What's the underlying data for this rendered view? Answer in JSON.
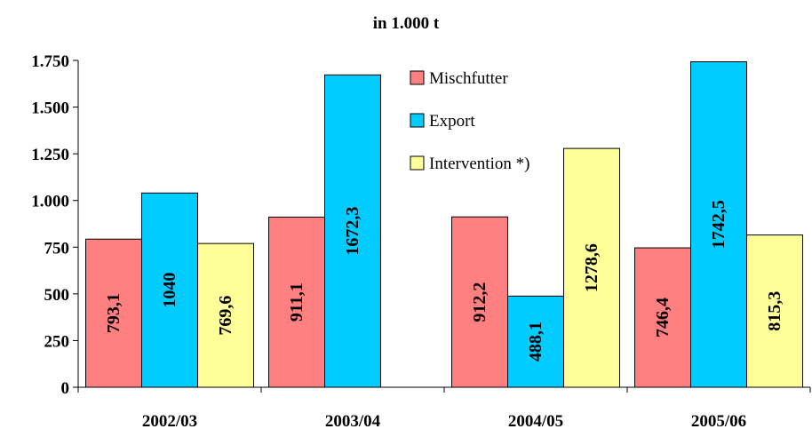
{
  "chart_data": {
    "type": "bar",
    "title": "in 1.000 t",
    "categories": [
      "2002/03",
      "2003/04",
      "2004/05",
      "2005/06"
    ],
    "series": [
      {
        "name": "Mischfutter",
        "color": "#ff8080",
        "values": [
          793.1,
          911.1,
          912.2,
          746.4
        ],
        "labels": [
          "793,1",
          "911,1",
          "912,2",
          "746,4"
        ]
      },
      {
        "name": "Export",
        "color": "#00ccff",
        "values": [
          1040,
          1672.3,
          488.1,
          1742.5
        ],
        "labels": [
          "1040",
          "1672,3",
          "488,1",
          "1742,5"
        ]
      },
      {
        "name": "Intervention *)",
        "color": "#ffff99",
        "values": [
          769.6,
          null,
          1278.6,
          815.3
        ],
        "labels": [
          "769,6",
          "",
          "1278,6",
          "815,3"
        ]
      }
    ],
    "ylim": [
      0,
      1750
    ],
    "yticks": [
      0,
      250,
      500,
      750,
      1000,
      1250,
      1500,
      1750
    ],
    "ytick_labels": [
      "0",
      "250",
      "500",
      "750",
      "1.000",
      "1.250",
      "1.500",
      "1.750"
    ],
    "legend": "top-center",
    "grid": false
  }
}
